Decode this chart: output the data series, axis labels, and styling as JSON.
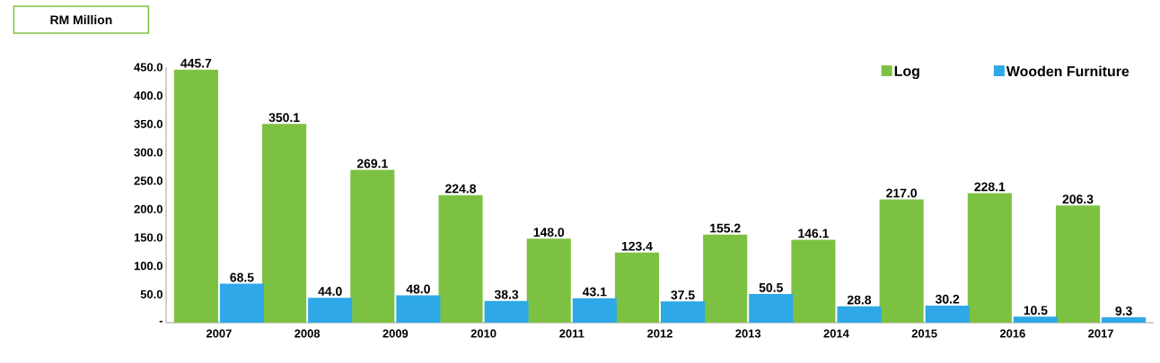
{
  "chart_data": {
    "type": "bar",
    "ylabel": "RM Million",
    "categories": [
      "2007",
      "2008",
      "2009",
      "2010",
      "2011",
      "2012",
      "2013",
      "2014",
      "2015",
      "2016",
      "2017"
    ],
    "series": [
      {
        "name": "Log",
        "color": "#7dc142",
        "values": [
          445.7,
          350.1,
          269.1,
          224.8,
          148.0,
          123.4,
          155.2,
          146.1,
          217.0,
          228.1,
          206.3
        ],
        "value_labels": [
          "445.7",
          "350.1",
          "269.1",
          "224.8",
          "148.0",
          "123.4",
          "155.2",
          "146.1",
          "217.0",
          "228.1",
          "206.3"
        ]
      },
      {
        "name": "Wooden Furniture",
        "color": "#2ea8e6",
        "values": [
          68.5,
          44.0,
          48.0,
          38.3,
          43.1,
          37.5,
          50.5,
          28.8,
          30.2,
          10.5,
          9.3
        ],
        "value_labels": [
          "68.5",
          "44.0",
          "48.0",
          "38.3",
          "43.1",
          "37.5",
          "50.5",
          "28.8",
          "30.2",
          "10.5",
          "9.3"
        ]
      }
    ],
    "ylim": [
      0,
      450
    ],
    "yticks": [
      {
        "value": 0,
        "label": "-"
      },
      {
        "value": 50,
        "label": "50.0"
      },
      {
        "value": 100,
        "label": "100.0"
      },
      {
        "value": 150,
        "label": "150.0"
      },
      {
        "value": 200,
        "label": "200.0"
      },
      {
        "value": 250,
        "label": "250.0"
      },
      {
        "value": 300,
        "label": "300.0"
      },
      {
        "value": 350,
        "label": "350.0"
      },
      {
        "value": 400,
        "label": "400.0"
      },
      {
        "value": 450,
        "label": "450.0"
      }
    ],
    "legend": "top right",
    "grid": false
  }
}
